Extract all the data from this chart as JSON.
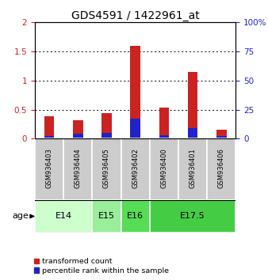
{
  "title": "GDS4591 / 1422961_at",
  "samples": [
    "GSM936403",
    "GSM936404",
    "GSM936405",
    "GSM936402",
    "GSM936400",
    "GSM936401",
    "GSM936406"
  ],
  "red_values": [
    0.38,
    0.32,
    0.44,
    1.6,
    0.53,
    1.15,
    0.15
  ],
  "blue_values": [
    0.04,
    0.08,
    0.1,
    0.35,
    0.06,
    0.18,
    0.04
  ],
  "ylim_left": [
    0,
    2
  ],
  "ylim_right": [
    0,
    100
  ],
  "yticks_left": [
    0,
    0.5,
    1.0,
    1.5,
    2.0
  ],
  "yticks_right": [
    0,
    25,
    50,
    75,
    100
  ],
  "ytick_labels_left": [
    "0",
    "0.5",
    "1",
    "1.5",
    "2"
  ],
  "ytick_labels_right": [
    "0",
    "25",
    "50",
    "75",
    "100%"
  ],
  "age_groups": [
    {
      "label": "E14",
      "samples": [
        "GSM936403",
        "GSM936404"
      ],
      "color": "#ccffcc"
    },
    {
      "label": "E15",
      "samples": [
        "GSM936405"
      ],
      "color": "#99ee99"
    },
    {
      "label": "E16",
      "samples": [
        "GSM936402"
      ],
      "color": "#55dd55"
    },
    {
      "label": "E17.5",
      "samples": [
        "GSM936400",
        "GSM936401",
        "GSM936406"
      ],
      "color": "#44cc44"
    }
  ],
  "bar_color_red": "#cc2222",
  "bar_color_blue": "#2222cc",
  "bar_width": 0.35,
  "sample_bg_color": "#cccccc",
  "legend_red_label": "transformed count",
  "legend_blue_label": "percentile rank within the sample",
  "age_label": "age",
  "title_fontsize": 10,
  "tick_fontsize": 7.5,
  "sample_fontsize": 6.0
}
